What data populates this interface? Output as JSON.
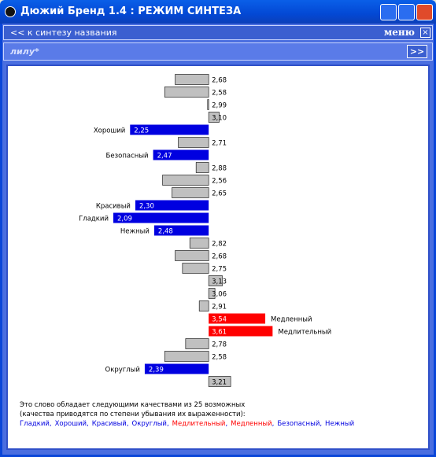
{
  "window": {
    "title": "Дюжий Бренд 1.4 : РЕЖИМ СИНТЕЗА"
  },
  "toolbar": {
    "back": "<< к синтезу названия",
    "menu": "меню",
    "close": "×"
  },
  "name_bar": {
    "name": "лилу*",
    "next": ">>"
  },
  "chart_data": {
    "type": "diverging-bar",
    "baseline": 3,
    "xlim": [
      2,
      3.75
    ],
    "categories": [
      null,
      null,
      null,
      null,
      "Хороший",
      null,
      "Безопасный",
      null,
      null,
      null,
      "Красивый",
      "Гладкий",
      "Нежный",
      null,
      null,
      null,
      null,
      null,
      null,
      "Медленный",
      "Медлительный",
      null,
      null,
      "Округлый",
      null
    ],
    "values": [
      2.68,
      2.58,
      2.99,
      3.1,
      2.25,
      2.71,
      2.47,
      2.88,
      2.56,
      2.65,
      2.3,
      2.09,
      2.48,
      2.82,
      2.68,
      2.75,
      3.13,
      3.06,
      2.91,
      3.54,
      3.61,
      2.78,
      2.58,
      2.39,
      3.21
    ],
    "value_labels": [
      "2,68",
      "2,58",
      "2,99",
      "3,10",
      "2,25",
      "2,71",
      "2,47",
      "2,88",
      "2,56",
      "2,65",
      "2,30",
      "2,09",
      "2,48",
      "2,82",
      "2,68",
      "2,75",
      "3,13",
      "3,06",
      "2,91",
      "3,54",
      "3,61",
      "2,78",
      "2,58",
      "2,39",
      "3,21"
    ],
    "colors": [
      "#c0c0c0",
      "#c0c0c0",
      "#c0c0c0",
      "#c0c0c0",
      "#0000e0",
      "#c0c0c0",
      "#0000e0",
      "#c0c0c0",
      "#c0c0c0",
      "#c0c0c0",
      "#0000e0",
      "#0000e0",
      "#0000e0",
      "#c0c0c0",
      "#c0c0c0",
      "#c0c0c0",
      "#c0c0c0",
      "#c0c0c0",
      "#c0c0c0",
      "#ff0000",
      "#ff0000",
      "#c0c0c0",
      "#c0c0c0",
      "#0000e0",
      "#c0c0c0"
    ]
  },
  "summary": {
    "line1": "Это слово обладает следующими качествами из 25 возможных",
    "line2": "(качества приводятся по степени убывания их выраженности):",
    "separator": ",",
    "items": [
      {
        "text": "Гладкий",
        "color": "#0000e0"
      },
      {
        "text": "Хороший",
        "color": "#0000e0"
      },
      {
        "text": "Красивый",
        "color": "#0000e0"
      },
      {
        "text": "Округлый",
        "color": "#0000e0"
      },
      {
        "text": "Медлительный",
        "color": "#ff0000"
      },
      {
        "text": "Медленный",
        "color": "#ff0000"
      },
      {
        "text": "Безопасный",
        "color": "#0000e0"
      },
      {
        "text": "Нежный",
        "color": "#0000e0"
      }
    ]
  }
}
